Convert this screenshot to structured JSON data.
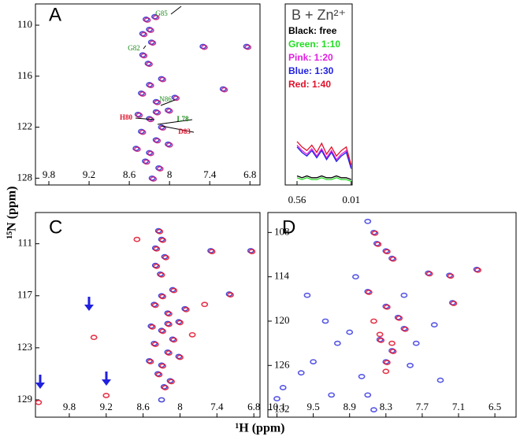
{
  "y_axis_label": "¹⁵N (ppm)",
  "x_axis_label": "¹H (ppm)",
  "chart_data": [
    {
      "type": "scatter",
      "title": "A",
      "xlim": [
        10.0,
        6.65
      ],
      "xticks": [
        9.8,
        9.2,
        8.6,
        8.0,
        7.4,
        6.8
      ],
      "ylim": [
        107.5,
        128.8
      ],
      "yticks": [
        110,
        116,
        122,
        128
      ],
      "y_inverted": true,
      "annotations": [
        {
          "text": "G85",
          "color": "#1a8a1a"
        },
        {
          "text": "G82",
          "color": "#1a8a1a"
        },
        {
          "text": "N86",
          "color": "#1a8a1a"
        },
        {
          "text": "L78",
          "color": "#1a8a1a"
        },
        {
          "text": "H80",
          "color": "#e0102a"
        },
        {
          "text": "D83",
          "color": "#e0102a"
        }
      ],
      "series": [
        {
          "color": "#2a2ad0",
          "x": [
            8.35,
            8.3,
            8.4,
            8.22,
            8.27,
            8.4,
            8.32,
            7.5,
            6.85,
            7.2,
            8.12,
            8.3,
            8.42,
            8.2,
            8.02,
            8.3,
            8.12,
            8.42,
            8.2,
            8.02,
            8.3,
            8.36,
            8.16,
            8.26,
            7.92,
            8.47,
            8.5,
            8.2
          ],
          "values": [
            109.3,
            110.5,
            111,
            109,
            112,
            113.5,
            114.5,
            112.5,
            112.5,
            117.5,
            116.3,
            117,
            118,
            119,
            120,
            121,
            122,
            122.5,
            123.5,
            124,
            125,
            126,
            126.8,
            128,
            118.5,
            120.5,
            124.5,
            120.2
          ]
        },
        {
          "color": "#c0187a",
          "x": [
            8.33,
            8.28,
            8.38,
            8.2,
            8.25,
            8.38,
            8.3,
            7.48,
            6.83,
            7.18,
            8.1,
            8.28,
            8.4,
            8.18,
            8.0,
            8.28,
            8.1,
            8.4,
            8.18,
            8.0,
            8.28,
            8.34,
            8.14,
            8.24,
            7.9,
            8.45,
            8.48,
            8.18
          ],
          "values": [
            109.4,
            110.6,
            111.1,
            109.1,
            112.1,
            113.6,
            114.6,
            112.6,
            112.6,
            117.6,
            116.4,
            117.1,
            118.1,
            119.1,
            120.1,
            121.1,
            122.1,
            122.6,
            123.6,
            124.1,
            125.1,
            126.1,
            126.9,
            128.1,
            118.6,
            120.6,
            124.6,
            120.3
          ]
        }
      ]
    },
    {
      "type": "line",
      "title": "B + Zn²⁺",
      "xlim": [
        0.68,
        0.0
      ],
      "xticks": [
        0.56,
        0.01
      ],
      "ylim": [
        0,
        1
      ],
      "x": [
        0.56,
        0.51,
        0.46,
        0.41,
        0.36,
        0.31,
        0.26,
        0.21,
        0.16,
        0.11,
        0.06,
        0.01
      ],
      "series": [
        {
          "name": "Black: free",
          "color": "#000000",
          "values": [
            0.05,
            0.04,
            0.05,
            0.04,
            0.04,
            0.05,
            0.04,
            0.04,
            0.05,
            0.04,
            0.04,
            0.03
          ]
        },
        {
          "name": "Green: 1:10",
          "color": "#22dd22",
          "values": [
            0.04,
            0.03,
            0.04,
            0.03,
            0.03,
            0.04,
            0.03,
            0.03,
            0.04,
            0.03,
            0.03,
            0.02
          ]
        },
        {
          "name": "Pink: 1:20",
          "color": "#e020e0",
          "values": [
            0.22,
            0.19,
            0.17,
            0.2,
            0.16,
            0.2,
            0.15,
            0.19,
            0.14,
            0.17,
            0.19,
            0.1
          ]
        },
        {
          "name": "Blue: 1:30",
          "color": "#2020e0",
          "values": [
            0.21,
            0.18,
            0.16,
            0.19,
            0.15,
            0.19,
            0.14,
            0.18,
            0.13,
            0.16,
            0.18,
            0.09
          ]
        },
        {
          "name": "Red: 1:40",
          "color": "#e0102a",
          "values": [
            0.24,
            0.21,
            0.19,
            0.22,
            0.18,
            0.23,
            0.17,
            0.21,
            0.16,
            0.19,
            0.21,
            0.11
          ]
        }
      ]
    },
    {
      "type": "scatter",
      "title": "C",
      "xlim": [
        10.35,
        6.7
      ],
      "xticks": [
        9.8,
        9.2,
        8.6,
        8.0,
        7.4,
        6.8
      ],
      "ylim": [
        107.4,
        131.0
      ],
      "yticks": [
        111,
        117,
        123,
        129
      ],
      "y_inverted": true,
      "series": [
        {
          "color": "#2a2ad0",
          "x": [
            8.35,
            8.3,
            8.4,
            8.25,
            8.4,
            8.32,
            7.5,
            6.85,
            7.2,
            8.12,
            8.3,
            8.42,
            8.2,
            8.02,
            8.3,
            8.12,
            8.42,
            8.2,
            8.02,
            8.3,
            8.36,
            8.16,
            8.26,
            7.92,
            8.47,
            8.5,
            8.2,
            8.3
          ],
          "values": [
            109.5,
            110.5,
            111.5,
            112.5,
            113.5,
            114.5,
            111.8,
            111.8,
            116.8,
            116.3,
            117,
            118,
            119,
            120,
            121,
            122,
            122.5,
            123.5,
            124,
            125,
            126,
            126.8,
            127.5,
            118.5,
            120.5,
            124.5,
            120.2,
            129
          ]
        },
        {
          "color": "#e0102a",
          "x": [
            8.33,
            8.28,
            8.38,
            8.23,
            8.38,
            8.3,
            7.48,
            6.83,
            7.18,
            8.1,
            8.28,
            8.4,
            8.18,
            8.0,
            8.28,
            8.1,
            8.4,
            8.18,
            8.0,
            8.28,
            8.34,
            8.14,
            8.24,
            7.9,
            8.45,
            8.48,
            8.18,
            10.3,
            9.4,
            9.2,
            8.7,
            7.8,
            7.6
          ],
          "values": [
            109.6,
            110.6,
            111.6,
            112.6,
            113.6,
            114.6,
            111.9,
            111.9,
            116.9,
            116.4,
            117.1,
            118.1,
            119.1,
            120.1,
            121.1,
            122.1,
            122.6,
            123.6,
            124.1,
            125.1,
            126.1,
            126.9,
            127.6,
            118.6,
            120.6,
            124.6,
            120.3,
            129.3,
            121.8,
            128.5,
            110.5,
            121.5,
            118
          ]
        }
      ]
    },
    {
      "type": "scatter",
      "title": "D",
      "xlim": [
        10.25,
        6.15
      ],
      "xticks": [
        10.1,
        9.5,
        8.9,
        8.3,
        7.7,
        7.1,
        6.5
      ],
      "ylim": [
        105.3,
        133.0
      ],
      "yticks": [
        108,
        114,
        120,
        126,
        132
      ],
      "y_inverted": true,
      "series": [
        {
          "color": "#3a3ae0",
          "x": [
            8.5,
            8.45,
            8.3,
            8.2,
            7.6,
            7.25,
            6.8,
            7.2,
            8.6,
            8.3,
            8.1,
            8.0,
            8.4,
            8.2,
            8.3,
            8.9,
            9.1,
            9.3,
            9.5,
            9.7,
            10.0,
            8.7,
            8.8,
            7.9,
            7.8,
            7.5,
            9.6,
            9.2,
            8.6,
            7.4,
            10.1,
            8.5,
            8.0,
            8.6
          ],
          "values": [
            108,
            109.5,
            110.5,
            111.5,
            113.5,
            113.8,
            113,
            117.5,
            116,
            118,
            119.5,
            121,
            122.5,
            124,
            125.5,
            121.5,
            123,
            120,
            125.5,
            127,
            129,
            127.5,
            114,
            126,
            123,
            120.5,
            116.5,
            130,
            130,
            128,
            130.5,
            132,
            116.5,
            106.5
          ]
        },
        {
          "color": "#e0102a",
          "x": [
            8.48,
            8.43,
            8.28,
            8.18,
            7.58,
            7.23,
            6.78,
            7.18,
            8.58,
            8.28,
            8.08,
            7.98,
            8.38,
            8.18,
            8.28,
            8.5,
            8.4,
            8.2,
            8.3
          ],
          "values": [
            108.1,
            109.6,
            110.6,
            111.6,
            113.6,
            113.9,
            113.1,
            117.6,
            116.1,
            118.1,
            119.6,
            121.1,
            122.6,
            124.1,
            125.6,
            120,
            121.8,
            123,
            126.8
          ]
        }
      ]
    }
  ]
}
